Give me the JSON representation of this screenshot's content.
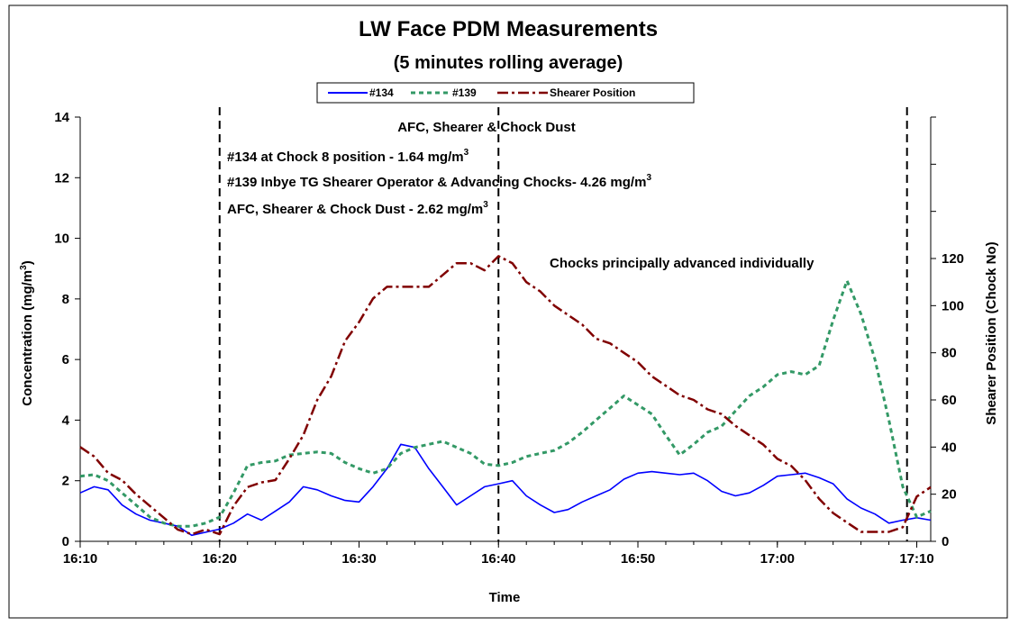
{
  "chart_data": {
    "type": "line",
    "title": "LW Face PDM Measurements",
    "subtitle": "(5 minutes rolling average)",
    "xlabel": "Time",
    "ylabel": "Concentration (mg/m",
    "ylabel_sup": "3",
    "ylabel_end": ")",
    "y2label": "Shearer Position (Chock No)",
    "xlim": [
      0,
      61
    ],
    "ylim": [
      0,
      14
    ],
    "y2lim": [
      0,
      180
    ],
    "x_ticks": [
      {
        "x": 0,
        "label": "16:10"
      },
      {
        "x": 10,
        "label": "16:20"
      },
      {
        "x": 20,
        "label": "16:30"
      },
      {
        "x": 30,
        "label": "16:40"
      },
      {
        "x": 40,
        "label": "16:50"
      },
      {
        "x": 50,
        "label": "17:00"
      },
      {
        "x": 60,
        "label": "17:10"
      }
    ],
    "y_ticks": [
      0,
      2,
      4,
      6,
      8,
      10,
      12,
      14
    ],
    "y2_ticks": [
      0,
      20,
      40,
      60,
      80,
      100,
      120
    ],
    "legend_position": "top",
    "grid": false,
    "series": [
      {
        "name": "#134",
        "axis": "left",
        "color": "#0000ff",
        "style": "solid",
        "x": [
          0,
          1,
          2,
          3,
          4,
          5,
          6,
          7,
          8,
          9,
          10,
          11,
          12,
          13,
          14,
          15,
          16,
          17,
          18,
          19,
          20,
          21,
          22,
          23,
          24,
          25,
          26,
          27,
          28,
          29,
          30,
          31,
          32,
          33,
          34,
          35,
          36,
          37,
          38,
          39,
          40,
          41,
          42,
          43,
          44,
          45,
          46,
          47,
          48,
          49,
          50,
          51,
          52,
          53,
          54,
          55,
          56,
          57,
          58,
          59,
          60,
          61
        ],
        "values": [
          1.6,
          1.8,
          1.7,
          1.2,
          0.9,
          0.7,
          0.6,
          0.5,
          0.2,
          0.3,
          0.4,
          0.6,
          0.9,
          0.7,
          1.0,
          1.3,
          1.8,
          1.7,
          1.5,
          1.35,
          1.3,
          1.8,
          2.4,
          3.2,
          3.1,
          2.4,
          1.8,
          1.2,
          1.5,
          1.8,
          1.9,
          2.0,
          1.5,
          1.2,
          0.95,
          1.05,
          1.3,
          1.5,
          1.7,
          2.05,
          2.25,
          2.3,
          2.25,
          2.2,
          2.25,
          2.0,
          1.65,
          1.5,
          1.6,
          1.85,
          2.15,
          2.2,
          2.25,
          2.1,
          1.9,
          1.4,
          1.1,
          0.9,
          0.6,
          0.7,
          0.78,
          0.7
        ]
      },
      {
        "name": "#139",
        "axis": "left",
        "color": "#339966",
        "style": "dotted",
        "x": [
          0,
          1,
          2,
          3,
          4,
          5,
          6,
          7,
          8,
          9,
          10,
          11,
          12,
          13,
          14,
          15,
          16,
          17,
          18,
          19,
          20,
          21,
          22,
          23,
          24,
          25,
          26,
          27,
          28,
          29,
          30,
          31,
          32,
          33,
          34,
          35,
          36,
          37,
          38,
          39,
          40,
          41,
          42,
          43,
          44,
          45,
          46,
          47,
          48,
          49,
          50,
          51,
          52,
          53,
          54,
          55,
          56,
          57,
          58,
          59,
          60,
          61
        ],
        "values": [
          2.15,
          2.2,
          2.0,
          1.6,
          1.2,
          0.8,
          0.6,
          0.5,
          0.5,
          0.6,
          0.8,
          1.6,
          2.5,
          2.6,
          2.65,
          2.85,
          2.9,
          2.95,
          2.9,
          2.6,
          2.4,
          2.25,
          2.4,
          2.9,
          3.1,
          3.2,
          3.3,
          3.1,
          2.9,
          2.55,
          2.5,
          2.6,
          2.8,
          2.9,
          3.0,
          3.25,
          3.6,
          4.0,
          4.4,
          4.8,
          4.5,
          4.2,
          3.5,
          2.85,
          3.2,
          3.6,
          3.8,
          4.3,
          4.8,
          5.1,
          5.5,
          5.6,
          5.5,
          5.8,
          7.3,
          8.6,
          7.5,
          6.0,
          4.0,
          1.8,
          0.8,
          1.0
        ]
      },
      {
        "name": "Shearer Position",
        "axis": "right",
        "color": "#800000",
        "style": "dashdot",
        "x": [
          0,
          1,
          2,
          3,
          4,
          5,
          6,
          7,
          8,
          9,
          10,
          11,
          12,
          13,
          14,
          15,
          16,
          17,
          18,
          19,
          20,
          21,
          22,
          23,
          24,
          25,
          26,
          27,
          28,
          29,
          30,
          31,
          32,
          33,
          34,
          35,
          36,
          37,
          38,
          39,
          40,
          41,
          42,
          43,
          44,
          45,
          46,
          47,
          48,
          49,
          50,
          51,
          52,
          53,
          54,
          55,
          56,
          57,
          58,
          59,
          60,
          61
        ],
        "values": [
          40,
          36,
          29,
          26,
          20,
          15,
          10,
          5,
          3,
          5,
          3,
          15,
          23,
          25,
          26,
          35,
          45,
          60,
          70,
          85,
          93,
          103,
          108,
          108,
          108,
          108,
          113,
          118,
          118,
          115,
          121,
          118,
          110,
          106,
          100,
          96,
          92,
          86,
          84,
          80,
          76,
          70,
          66,
          62,
          60,
          56,
          54,
          49,
          45,
          41,
          35,
          32,
          26,
          18,
          12,
          8,
          4,
          4,
          4,
          6,
          19,
          23
        ]
      }
    ],
    "vertical_lines": [
      10,
      30,
      59.3
    ],
    "annotations": {
      "header": "AFC, Shearer & Chock Dust",
      "line1": "#134 at Chock 8 position - 1.64 mg/m",
      "line2": "#139 Inbye TG Shearer Operator & Advancing Chocks- 4.26 mg/m",
      "line3": "AFC, Shearer & Chock Dust - 2.62 mg/m",
      "sup": "3",
      "chocks_note": "Chocks principally advanced individually"
    }
  }
}
